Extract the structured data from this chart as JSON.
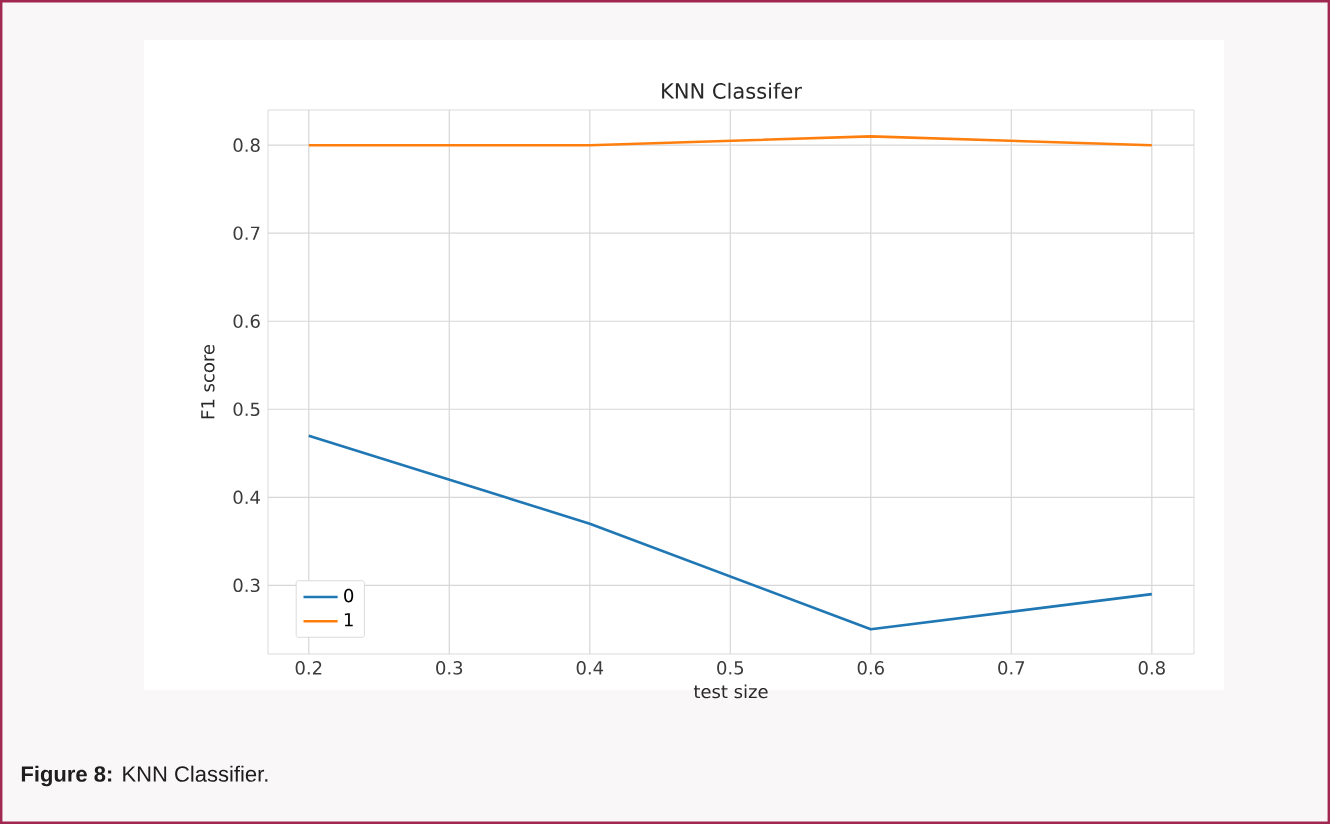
{
  "chart_data": {
    "type": "line",
    "title": "KNN Classifer",
    "xlabel": "test size",
    "ylabel": "F1 score",
    "x": [
      0.2,
      0.4,
      0.6,
      0.8
    ],
    "series": [
      {
        "name": "0",
        "color": "#1f77b4",
        "values": [
          0.47,
          0.37,
          0.25,
          0.29
        ]
      },
      {
        "name": "1",
        "color": "#ff7f0e",
        "values": [
          0.8,
          0.8,
          0.81,
          0.8
        ]
      }
    ],
    "xlim": [
      0.171,
      0.83
    ],
    "ylim": [
      0.222,
      0.84
    ],
    "xticks": [
      0.2,
      0.3,
      0.4,
      0.5,
      0.6,
      0.7,
      0.8
    ],
    "yticks": [
      0.3,
      0.4,
      0.5,
      0.6,
      0.7,
      0.8
    ],
    "grid": true,
    "legend": "bottom left",
    "marker": "none",
    "line_style": "solid",
    "annotations": [
      "**Figure 8:** KNN Classifier."
    ]
  }
}
